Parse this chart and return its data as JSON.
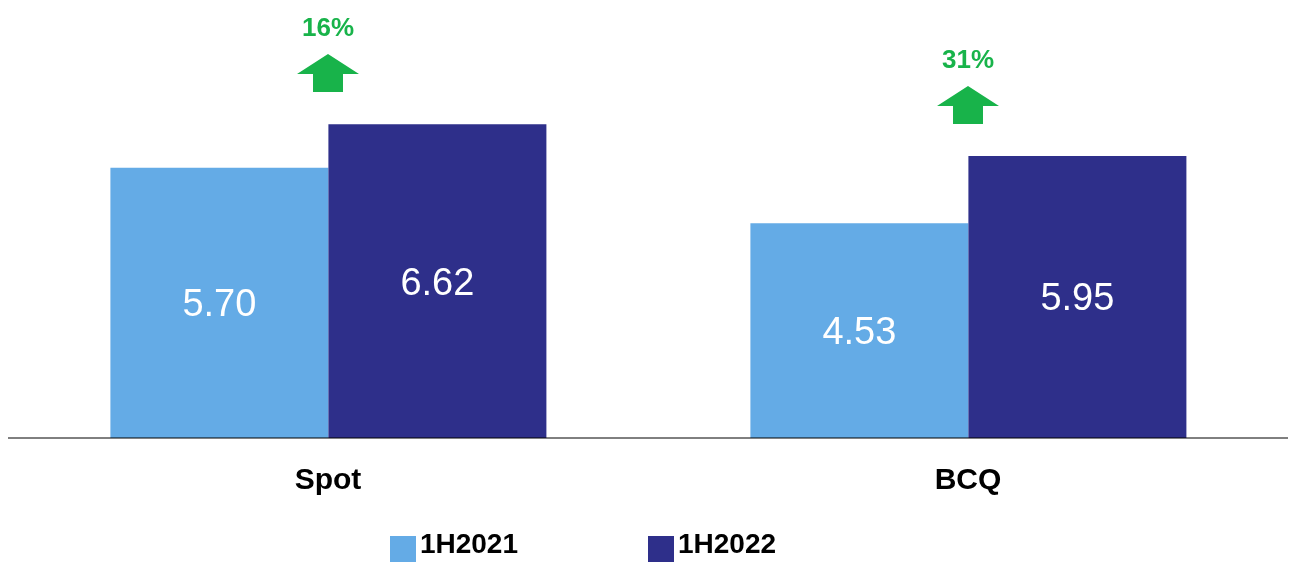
{
  "chart_data": {
    "type": "bar",
    "categories": [
      "Spot",
      "BCQ"
    ],
    "series": [
      {
        "name": "1H2021",
        "color": "#64abe6",
        "values": [
          5.7,
          4.53
        ],
        "value_labels": [
          "5.70",
          "4.53"
        ]
      },
      {
        "name": "1H2022",
        "color": "#2e2f8a",
        "values": [
          6.62,
          5.95
        ],
        "value_labels": [
          "6.62",
          "5.95"
        ]
      }
    ],
    "legend": "bottom",
    "annotations": [
      "16%",
      "31%"
    ]
  }
}
